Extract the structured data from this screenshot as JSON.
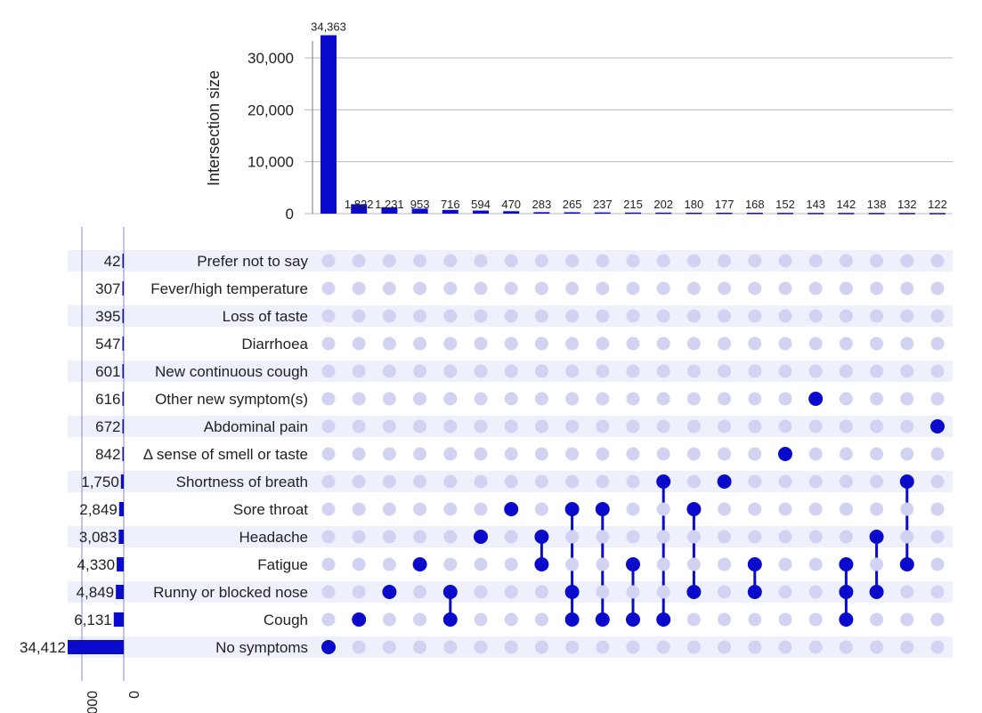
{
  "chart_data": {
    "type": "bar",
    "title": "",
    "ylabel": "Intersection size",
    "ylim": [
      0,
      36000
    ],
    "yticks": [
      {
        "value": 0,
        "label": "0"
      },
      {
        "value": 10000,
        "label": "10,000"
      },
      {
        "value": 20000,
        "label": "20,000"
      },
      {
        "value": 30000,
        "label": "30,000"
      }
    ],
    "sets": [
      {
        "name": "Prefer not to say",
        "size": 42,
        "size_label": "42"
      },
      {
        "name": "Fever/high temperature",
        "size": 307,
        "size_label": "307"
      },
      {
        "name": "Loss of taste",
        "size": 395,
        "size_label": "395"
      },
      {
        "name": "Diarrhoea",
        "size": 547,
        "size_label": "547"
      },
      {
        "name": "New continuous cough",
        "size": 601,
        "size_label": "601"
      },
      {
        "name": "Other new symptom(s)",
        "size": 616,
        "size_label": "616"
      },
      {
        "name": "Abdominal pain",
        "size": 672,
        "size_label": "672"
      },
      {
        "name": "Δ sense of smell or taste",
        "size": 842,
        "size_label": "842"
      },
      {
        "name": "Shortness of breath",
        "size": 1750,
        "size_label": "1,750"
      },
      {
        "name": "Sore throat",
        "size": 2849,
        "size_label": "2,849"
      },
      {
        "name": "Headache",
        "size": 3083,
        "size_label": "3,083"
      },
      {
        "name": "Fatigue",
        "size": 4330,
        "size_label": "4,330"
      },
      {
        "name": "Runny or blocked nose",
        "size": 4849,
        "size_label": "4,849"
      },
      {
        "name": "Cough",
        "size": 6131,
        "size_label": "6,131"
      },
      {
        "name": "No symptoms",
        "size": 34412,
        "size_label": "34,412"
      }
    ],
    "set_size_axis": {
      "tick_labels": [
        "000",
        "0"
      ]
    },
    "intersections": [
      {
        "value": 34363,
        "label": "34,363",
        "sets": [
          "No symptoms"
        ]
      },
      {
        "value": 1822,
        "label": "1,822",
        "sets": [
          "Cough"
        ]
      },
      {
        "value": 1231,
        "label": "1,231",
        "sets": [
          "Runny or blocked nose"
        ]
      },
      {
        "value": 953,
        "label": "953",
        "sets": [
          "Fatigue"
        ]
      },
      {
        "value": 716,
        "label": "716",
        "sets": [
          "Runny or blocked nose",
          "Cough"
        ]
      },
      {
        "value": 594,
        "label": "594",
        "sets": [
          "Headache"
        ]
      },
      {
        "value": 470,
        "label": "470",
        "sets": [
          "Sore throat"
        ]
      },
      {
        "value": 283,
        "label": "283",
        "sets": [
          "Headache",
          "Fatigue"
        ]
      },
      {
        "value": 265,
        "label": "265",
        "sets": [
          "Sore throat",
          "Runny or blocked nose",
          "Cough"
        ]
      },
      {
        "value": 237,
        "label": "237",
        "sets": [
          "Sore throat",
          "Cough"
        ]
      },
      {
        "value": 215,
        "label": "215",
        "sets": [
          "Fatigue",
          "Cough"
        ]
      },
      {
        "value": 202,
        "label": "202",
        "sets": [
          "Shortness of breath",
          "Cough"
        ]
      },
      {
        "value": 180,
        "label": "180",
        "sets": [
          "Sore throat",
          "Runny or blocked nose"
        ]
      },
      {
        "value": 177,
        "label": "177",
        "sets": [
          "Shortness of breath"
        ]
      },
      {
        "value": 168,
        "label": "168",
        "sets": [
          "Fatigue",
          "Runny or blocked nose"
        ]
      },
      {
        "value": 152,
        "label": "152",
        "sets": [
          "Δ sense of smell or taste"
        ]
      },
      {
        "value": 143,
        "label": "143",
        "sets": [
          "Other new symptom(s)"
        ]
      },
      {
        "value": 142,
        "label": "142",
        "sets": [
          "Fatigue",
          "Runny or blocked nose",
          "Cough"
        ]
      },
      {
        "value": 138,
        "label": "138",
        "sets": [
          "Headache",
          "Runny or blocked nose"
        ]
      },
      {
        "value": 132,
        "label": "132",
        "sets": [
          "Shortness of breath",
          "Fatigue"
        ]
      },
      {
        "value": 122,
        "label": "122",
        "sets": [
          "Abdominal pain"
        ]
      }
    ],
    "grid": true,
    "colors": {
      "bar": "#0a0acc",
      "dot_active": "#0a0acc",
      "dot_inactive": "#d2d2f2",
      "row_band": "#eef0fb",
      "gridline": "#bbbbbb"
    }
  }
}
